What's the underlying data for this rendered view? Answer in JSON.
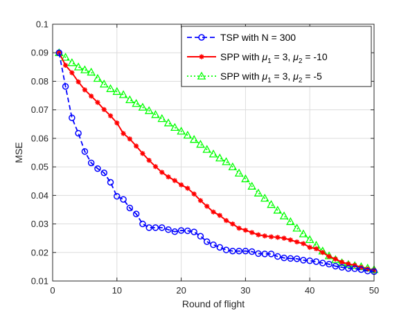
{
  "chart_data": {
    "type": "line",
    "xlabel": "Round of flight",
    "ylabel": "MSE",
    "xlim": [
      0,
      50
    ],
    "ylim": [
      0.01,
      0.1
    ],
    "xticks": [
      0,
      10,
      20,
      30,
      40,
      50
    ],
    "yticks": [
      0.01,
      0.02,
      0.03,
      0.04,
      0.05,
      0.06,
      0.07,
      0.08,
      0.09,
      0.1
    ],
    "xtick_labels": [
      "0",
      "10",
      "20",
      "30",
      "40",
      "50"
    ],
    "ytick_labels": [
      "0.01",
      "0.02",
      "0.03",
      "0.04",
      "0.05",
      "0.06",
      "0.07",
      "0.08",
      "0.09",
      "0.1"
    ],
    "grid": true,
    "legend_position": "top-right",
    "x": [
      1,
      2,
      3,
      4,
      5,
      6,
      7,
      8,
      9,
      10,
      11,
      12,
      13,
      14,
      15,
      16,
      17,
      18,
      19,
      20,
      21,
      22,
      23,
      24,
      25,
      26,
      27,
      28,
      29,
      30,
      31,
      32,
      33,
      34,
      35,
      36,
      37,
      38,
      39,
      40,
      41,
      42,
      43,
      44,
      45,
      46,
      47,
      48,
      49,
      50
    ],
    "series": [
      {
        "name": "TSP with N = 300",
        "legend_parts": [
          [
            "TSP with N = 300",
            ""
          ]
        ],
        "color": "#0000ff",
        "line_style": "dashed",
        "marker": "circle",
        "values": [
          0.09,
          0.0782,
          0.0672,
          0.0618,
          0.0554,
          0.0514,
          0.0494,
          0.0479,
          0.0446,
          0.0397,
          0.0386,
          0.0356,
          0.0335,
          0.03,
          0.0287,
          0.0287,
          0.0287,
          0.028,
          0.0273,
          0.0277,
          0.0276,
          0.0272,
          0.0257,
          0.0238,
          0.0227,
          0.0218,
          0.0209,
          0.0205,
          0.0205,
          0.0205,
          0.0203,
          0.0196,
          0.0195,
          0.0195,
          0.0186,
          0.0181,
          0.0179,
          0.0178,
          0.0173,
          0.0171,
          0.0168,
          0.0163,
          0.0159,
          0.0152,
          0.0148,
          0.0144,
          0.0143,
          0.014,
          0.0135,
          0.0133
        ]
      },
      {
        "name": "SPP with μ1 = 3, μ2 = -10",
        "legend_parts": [
          [
            "SPP with ",
            ""
          ],
          [
            "μ",
            "1"
          ],
          [
            " = 3, ",
            ""
          ],
          [
            "μ",
            "2"
          ],
          [
            " = -10",
            ""
          ]
        ],
        "color": "#ff0000",
        "line_style": "solid",
        "marker": "asterisk",
        "values": [
          0.09,
          0.0856,
          0.083,
          0.0798,
          0.077,
          0.0748,
          0.0726,
          0.0701,
          0.0679,
          0.0654,
          0.0617,
          0.0598,
          0.0573,
          0.0547,
          0.0523,
          0.0501,
          0.0481,
          0.0465,
          0.0452,
          0.0437,
          0.0425,
          0.0405,
          0.0382,
          0.0362,
          0.0342,
          0.033,
          0.0312,
          0.03,
          0.0285,
          0.0278,
          0.027,
          0.0262,
          0.0258,
          0.0255,
          0.0253,
          0.025,
          0.0244,
          0.0237,
          0.0231,
          0.0218,
          0.0213,
          0.02,
          0.0186,
          0.0177,
          0.0166,
          0.016,
          0.0155,
          0.0148,
          0.0142,
          0.0138
        ]
      },
      {
        "name": "SPP with μ1 = 3, μ2 = -5",
        "legend_parts": [
          [
            "SPP with ",
            ""
          ],
          [
            "μ",
            "1"
          ],
          [
            " = 3, ",
            ""
          ],
          [
            "μ",
            "2"
          ],
          [
            " = -5",
            ""
          ]
        ],
        "color": "#00ff00",
        "line_style": "dotted",
        "marker": "triangle",
        "values": [
          0.09,
          0.0884,
          0.0865,
          0.085,
          0.084,
          0.0832,
          0.081,
          0.079,
          0.0774,
          0.0764,
          0.0753,
          0.0735,
          0.0722,
          0.0709,
          0.0697,
          0.0683,
          0.0669,
          0.0654,
          0.0638,
          0.0625,
          0.0611,
          0.0596,
          0.0579,
          0.0561,
          0.0545,
          0.0531,
          0.0518,
          0.05,
          0.0478,
          0.0458,
          0.0432,
          0.0408,
          0.039,
          0.0368,
          0.0348,
          0.0328,
          0.0308,
          0.0285,
          0.0265,
          0.0245,
          0.0225,
          0.0205,
          0.0188,
          0.0175,
          0.0164,
          0.0158,
          0.0154,
          0.015,
          0.0145,
          0.014
        ]
      }
    ]
  }
}
